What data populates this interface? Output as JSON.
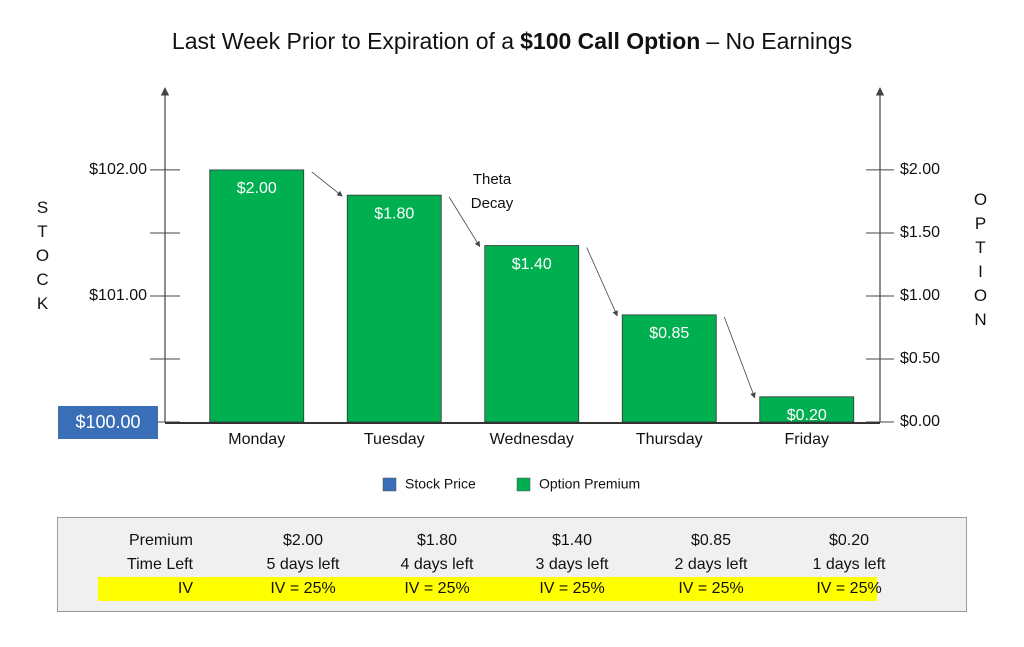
{
  "chart_data": {
    "type": "bar",
    "title_parts": [
      "Last Week Prior to Expiration of a",
      "$100 Call Option",
      "– No Earnings"
    ],
    "y_label": "STOCK",
    "y2_label": "OPTION",
    "annotation": "Theta Decay",
    "categories": [
      "Monday",
      "Tuesday",
      "Wednesday",
      "Thursday",
      "Friday"
    ],
    "series": [
      {
        "name": "Stock Price",
        "color": "#3a6fb7",
        "values": [
          100,
          100,
          100,
          100,
          100
        ]
      },
      {
        "name": "Option Premium",
        "color": "#00b050",
        "axis": "y2",
        "values": [
          2.0,
          1.8,
          1.4,
          0.85,
          0.2
        ],
        "value_labels": [
          "$2.00",
          "$1.80",
          "$1.40",
          "$0.85",
          "$0.20"
        ]
      }
    ],
    "ylim": [
      100,
      102.65
    ],
    "yticks": [
      {
        "value": 100,
        "label": "$100.00"
      },
      {
        "value": 101,
        "label": "$101.00"
      },
      {
        "value": 102,
        "label": "$102.00"
      }
    ],
    "yminor_ticks": [
      100.5,
      101.5
    ],
    "y2lim": [
      0,
      2.65
    ],
    "y2ticks": [
      {
        "value": 0,
        "label": "$0.00"
      },
      {
        "value": 0.5,
        "label": "$0.50"
      },
      {
        "value": 1,
        "label": "$1.00"
      },
      {
        "value": 1.5,
        "label": "$1.50"
      },
      {
        "value": 2,
        "label": "$2.00"
      }
    ],
    "highlight_tick": 0,
    "highlight_color": "#3a6fb7",
    "legend": "bottom"
  },
  "table": {
    "rows": [
      [
        "Premium",
        "$2.00",
        "$1.80",
        "$1.40",
        "$0.85",
        "$0.20"
      ],
      [
        "Time Left",
        "5 days left",
        "4 days left",
        "3 days left",
        "2 days left",
        "1 days left"
      ],
      [
        "IV",
        "IV = 25%",
        "IV = 25%",
        "IV = 25%",
        "IV = 25%",
        "IV = 25%"
      ]
    ],
    "highlight_row": 2,
    "highlight_color": "#ffff00"
  }
}
